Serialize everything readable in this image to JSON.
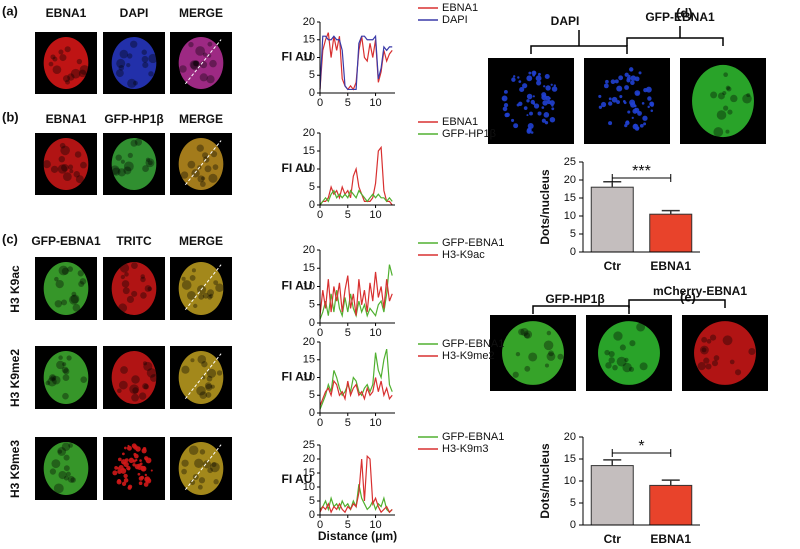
{
  "panel_labels": [
    "(a)",
    "(b)",
    "(c)",
    "(d)",
    "(e)"
  ],
  "image_headers": [
    [
      "EBNA1",
      "DAPI",
      "MERGE"
    ],
    [
      "EBNA1",
      "GFP-HP1β",
      "MERGE"
    ],
    [
      "GFP-EBNA1",
      "TRITC",
      "MERGE"
    ],
    [
      "DAPI",
      "GFP-EBNA1"
    ],
    [
      "GFP-HP1β",
      "mCherry-EBNA1"
    ]
  ],
  "row_labels": [
    "H3 K9ac",
    "H3 K9me2",
    "H3 K9me3"
  ],
  "chart_data": [
    {
      "type": "line",
      "ylabel": "FI AU",
      "x": [
        0,
        0.5,
        1,
        1.5,
        2,
        2.5,
        3,
        3.5,
        4,
        4.5,
        5,
        5.5,
        6,
        6.5,
        7,
        7.5,
        8,
        8.5,
        9,
        9.5,
        10,
        10.5,
        11,
        11.5,
        12,
        12.5,
        13
      ],
      "xlim": [
        0,
        13.5
      ],
      "xticks": [
        0,
        5,
        10
      ],
      "ylim": [
        0,
        20
      ],
      "yticks": [
        0,
        5,
        10,
        15,
        20
      ],
      "series": [
        {
          "name": "EBNA1",
          "color": "#d83030",
          "values": [
            1,
            12,
            15,
            17,
            10,
            16,
            12,
            16,
            4,
            2,
            1,
            2,
            1,
            3,
            12,
            16,
            10,
            9,
            14,
            10,
            15,
            3,
            6,
            12,
            9,
            11,
            12
          ]
        },
        {
          "name": "DAPI",
          "color": "#3a3aa8",
          "values": [
            1,
            16,
            16,
            15,
            15,
            16,
            15,
            15,
            12,
            2,
            1,
            1,
            1,
            1,
            14,
            16,
            16,
            15,
            15,
            15,
            16,
            4,
            7,
            13,
            12,
            13,
            13
          ]
        }
      ]
    },
    {
      "type": "line",
      "ylabel": "FI AU",
      "x": [
        0,
        0.5,
        1,
        1.5,
        2,
        2.5,
        3,
        3.5,
        4,
        4.5,
        5,
        5.5,
        6,
        6.5,
        7,
        7.5,
        8,
        8.5,
        9,
        9.5,
        10,
        10.5,
        11,
        11.5,
        12,
        12.5,
        13
      ],
      "xlim": [
        0,
        13.5
      ],
      "xticks": [
        0,
        5,
        10
      ],
      "ylim": [
        0,
        20
      ],
      "yticks": [
        0,
        5,
        10,
        15,
        20
      ],
      "series": [
        {
          "name": "EBNA1",
          "color": "#d83030",
          "values": [
            0,
            1,
            1,
            2,
            5,
            3,
            4,
            2,
            5,
            3,
            4,
            2,
            8,
            10,
            5,
            3,
            1,
            1,
            1,
            2,
            6,
            15,
            16,
            4,
            1,
            1,
            0
          ]
        },
        {
          "name": "GFP-HP1β",
          "color": "#50b030",
          "values": [
            0,
            1,
            2,
            1,
            3,
            4,
            2,
            3,
            2,
            3,
            2,
            4,
            3,
            2,
            4,
            3,
            2,
            1,
            2,
            3,
            2,
            3,
            2,
            2,
            1,
            2,
            1
          ]
        }
      ]
    },
    {
      "type": "line",
      "ylabel": "FI AU",
      "x": [
        0,
        0.5,
        1,
        1.5,
        2,
        2.5,
        3,
        3.5,
        4,
        4.5,
        5,
        5.5,
        6,
        6.5,
        7,
        7.5,
        8,
        8.5,
        9,
        9.5,
        10,
        10.5,
        11,
        11.5,
        12,
        12.5,
        13
      ],
      "xlim": [
        0,
        13.5
      ],
      "xticks": [
        0,
        5,
        10
      ],
      "ylim": [
        0,
        20
      ],
      "yticks": [
        0,
        5,
        10,
        15,
        20
      ],
      "series": [
        {
          "name": "GFP-EBNA1",
          "color": "#50b030",
          "values": [
            1,
            3,
            6,
            2,
            8,
            3,
            9,
            4,
            2,
            7,
            3,
            8,
            4,
            2,
            6,
            3,
            5,
            2,
            4,
            3,
            2,
            5,
            6,
            3,
            8,
            16,
            13
          ]
        },
        {
          "name": "H3-K9ac",
          "color": "#d83030",
          "values": [
            2,
            9,
            4,
            12,
            3,
            10,
            6,
            11,
            3,
            9,
            13,
            4,
            8,
            2,
            12,
            5,
            9,
            3,
            11,
            6,
            14,
            7,
            10,
            4,
            12,
            6,
            8
          ]
        }
      ]
    },
    {
      "type": "line",
      "ylabel": "FI AU",
      "x": [
        0,
        0.5,
        1,
        1.5,
        2,
        2.5,
        3,
        3.5,
        4,
        4.5,
        5,
        5.5,
        6,
        6.5,
        7,
        7.5,
        8,
        8.5,
        9,
        9.5,
        10,
        10.5,
        11,
        11.5,
        12,
        12.5,
        13
      ],
      "xlim": [
        0,
        13.5
      ],
      "xticks": [
        0,
        5,
        10
      ],
      "ylim": [
        0,
        20
      ],
      "yticks": [
        0,
        5,
        10,
        15,
        20
      ],
      "series": [
        {
          "name": "GFP-EBNA1",
          "color": "#50b030",
          "values": [
            1,
            3,
            5,
            8,
            6,
            12,
            10,
            7,
            5,
            6,
            8,
            6,
            10,
            9,
            6,
            5,
            7,
            8,
            6,
            8,
            17,
            12,
            10,
            15,
            18,
            8,
            6
          ]
        },
        {
          "name": "H3-K9me2",
          "color": "#d83030",
          "values": [
            2,
            4,
            6,
            7,
            5,
            9,
            8,
            5,
            6,
            4,
            9,
            5,
            7,
            8,
            5,
            6,
            4,
            7,
            5,
            6,
            10,
            6,
            9,
            5,
            7,
            4,
            5
          ]
        }
      ]
    },
    {
      "type": "line",
      "ylabel": "FI AU",
      "xlabel": "Distance (μm)",
      "x": [
        0,
        0.5,
        1,
        1.5,
        2,
        2.5,
        3,
        3.5,
        4,
        4.5,
        5,
        5.5,
        6,
        6.5,
        7,
        7.5,
        8,
        8.5,
        9,
        9.5,
        10,
        10.5,
        11,
        11.5,
        12,
        12.5,
        13
      ],
      "xlim": [
        0,
        13.5
      ],
      "xticks": [
        0,
        5,
        10
      ],
      "ylim": [
        0,
        25
      ],
      "yticks": [
        0,
        5,
        10,
        15,
        20,
        25
      ],
      "series": [
        {
          "name": "GFP-EBNA1",
          "color": "#50b030",
          "values": [
            2,
            3,
            5,
            2,
            6,
            3,
            4,
            2,
            5,
            3,
            4,
            2,
            5,
            3,
            11,
            6,
            4,
            2,
            3,
            5,
            2,
            4,
            3,
            6,
            2,
            1,
            2
          ]
        },
        {
          "name": "H3-K9m3",
          "color": "#d83030",
          "values": [
            1,
            3,
            2,
            4,
            1,
            3,
            2,
            4,
            2,
            1,
            3,
            2,
            4,
            3,
            8,
            20,
            5,
            21,
            20,
            4,
            6,
            3,
            1,
            2,
            3,
            1,
            2
          ]
        }
      ]
    },
    {
      "type": "bar",
      "ylabel": "Dots/nucleus",
      "categories": [
        "Ctr",
        "EBNA1"
      ],
      "values": [
        18,
        10.5
      ],
      "errors": [
        1.5,
        1
      ],
      "colors": [
        "#c4bebe",
        "#e8432b"
      ],
      "annotation": "***",
      "ylim": [
        0,
        25
      ],
      "yticks": [
        0,
        5,
        10,
        15,
        20,
        25
      ]
    },
    {
      "type": "bar",
      "ylabel": "Dots/nucleus",
      "categories": [
        "Ctr",
        "EBNA1"
      ],
      "values": [
        13.5,
        9
      ],
      "errors": [
        1.3,
        1.2
      ],
      "colors": [
        "#c4bebe",
        "#e8432b"
      ],
      "annotation": "*",
      "ylim": [
        0,
        20
      ],
      "yticks": [
        0,
        5,
        10,
        15,
        20
      ]
    }
  ]
}
